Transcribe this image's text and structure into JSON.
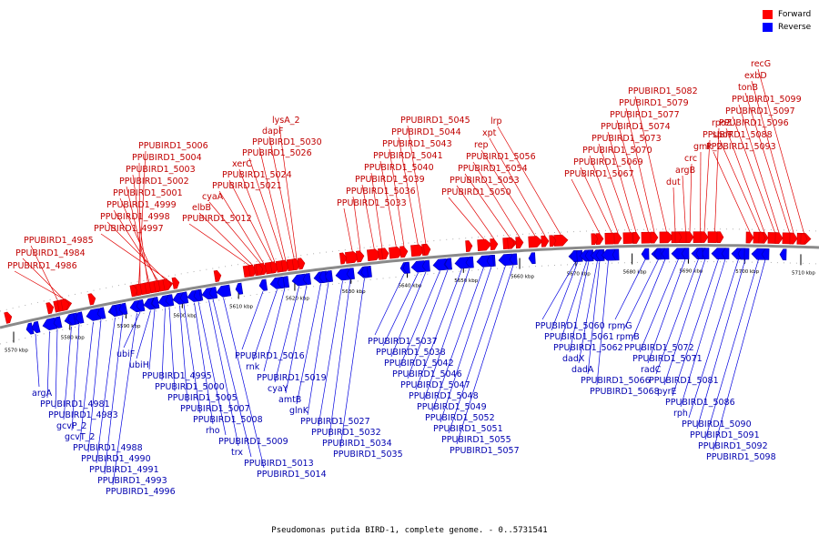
{
  "legend": {
    "forward_label": "Forward",
    "reverse_label": "Reverse",
    "forward_color": "#ff0000",
    "reverse_color": "#0000ff"
  },
  "caption": "Pseudomonas putida BIRD-1, complete genome. - 0..5731541",
  "scale_unit": "kbp",
  "ticks": [
    5570,
    5580,
    5590,
    5600,
    5610,
    5620,
    5630,
    5640,
    5650,
    5660,
    5670,
    5680,
    5690,
    5700,
    5710
  ],
  "forward_labels": [
    "PPUBIRD1_4985",
    "PPUBIRD1_4984",
    "PPUBIRD1_4986",
    "PPUBIRD1_5006",
    "PPUBIRD1_5004",
    "PPUBIRD1_5003",
    "PPUBIRD1_5002",
    "PPUBIRD1_5001",
    "PPUBIRD1_4999",
    "PPUBIRD1_4998",
    "PPUBIRD1_4997",
    "PPUBIRD1_5012",
    "elbB",
    "cyaA",
    "PPUBIRD1_5021",
    "PPUBIRD1_5024",
    "xerC",
    "PPUBIRD1_5026",
    "PPUBIRD1_5030",
    "dapF",
    "lysA_2",
    "PPUBIRD1_5033",
    "PPUBIRD1_5036",
    "PPUBIRD1_5039",
    "PPUBIRD1_5040",
    "PPUBIRD1_5041",
    "PPUBIRD1_5043",
    "PPUBIRD1_5044",
    "PPUBIRD1_5045",
    "PPUBIRD1_5050",
    "PPUBIRD1_5053",
    "PPUBIRD1_5054",
    "PPUBIRD1_5056",
    "rep",
    "xpt",
    "lrp",
    "PPUBIRD1_5067",
    "PPUBIRD1_5069",
    "PPUBIRD1_5070",
    "PPUBIRD1_5073",
    "PPUBIRD1_5074",
    "PPUBIRD1_5077",
    "PPUBIRD1_5079",
    "PPUBIRD1_5082",
    "dut",
    "argB",
    "crc",
    "gmk_2",
    "PPUBIRD1_5088",
    "rpoZ",
    "PPUBIRD1_5093",
    "spoT",
    "PPUBIRD1_5096",
    "PPUBIRD1_5097",
    "PPUBIRD1_5099",
    "tonB",
    "exbD",
    "recG"
  ],
  "reverse_labels": [
    "argA",
    "PPUBIRD1_4981",
    "PPUBIRD1_4983",
    "gcvP_2",
    "gcvT_2",
    "PPUBIRD1_4988",
    "PPUBIRD1_4990",
    "PPUBIRD1_4991",
    "PPUBIRD1_4993",
    "PPUBIRD1_4996",
    "ubiF",
    "ubiH",
    "PPUBIRD1_4995",
    "PPUBIRD1_5000",
    "PPUBIRD1_5005",
    "PPUBIRD1_5007",
    "PPUBIRD1_5008",
    "rho",
    "PPUBIRD1_5009",
    "trx",
    "PPUBIRD1_5013",
    "PPUBIRD1_5014",
    "PPUBIRD1_5016",
    "rnk",
    "PPUBIRD1_5019",
    "cyaY",
    "amtB",
    "glnK",
    "PPUBIRD1_5027",
    "PPUBIRD1_5032",
    "PPUBIRD1_5034",
    "PPUBIRD1_5035",
    "PPUBIRD1_5037",
    "PPUBIRD1_5038",
    "PPUBIRD1_5042",
    "PPUBIRD1_5046",
    "PPUBIRD1_5047",
    "PPUBIRD1_5048",
    "PPUBIRD1_5049",
    "PPUBIRD1_5052",
    "PPUBIRD1_5051",
    "PPUBIRD1_5055",
    "PPUBIRD1_5057",
    "PPUBIRD1_5060",
    "PPUBIRD1_5061",
    "PPUBIRD1_5062",
    "dadX",
    "dadA",
    "PPUBIRD1_5066",
    "PPUBIRD1_5068",
    "rpmG",
    "rpmB",
    "PPUBIRD1_5072",
    "PPUBIRD1_5071",
    "radC",
    "PPUBIRD1_5081",
    "pyrE",
    "PPUBIRD1_5086",
    "rph",
    "PPUBIRD1_5090",
    "PPUBIRD1_5091",
    "PPUBIRD1_5092",
    "PPUBIRD1_5098"
  ]
}
